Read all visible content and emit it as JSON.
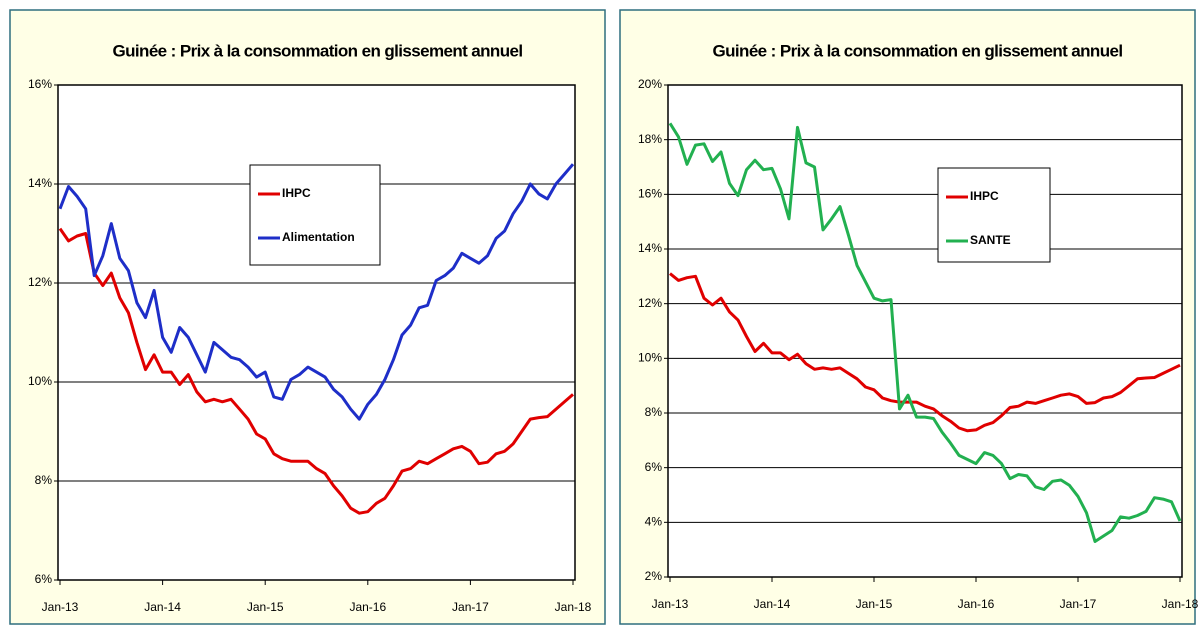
{
  "chart_data": [
    {
      "type": "line",
      "title": "Guinée : Prix à la consommation en glissement annuel",
      "categories": [
        "Jan-13",
        null,
        null,
        null,
        null,
        null,
        null,
        null,
        null,
        null,
        null,
        null,
        "Jan-14",
        null,
        null,
        null,
        null,
        null,
        null,
        null,
        null,
        null,
        null,
        null,
        "Jan-15",
        null,
        null,
        null,
        null,
        null,
        null,
        null,
        null,
        null,
        null,
        null,
        "Jan-16",
        null,
        null,
        null,
        null,
        null,
        null,
        null,
        null,
        null,
        null,
        null,
        "Jan-17",
        null,
        null,
        null,
        null,
        null,
        null,
        null,
        null,
        null,
        null,
        null,
        "Jan-18"
      ],
      "series": [
        {
          "name": "IHPC",
          "color": "#e00000",
          "values": [
            13.1,
            12.85,
            12.95,
            13.0,
            12.2,
            11.95,
            12.2,
            11.7,
            11.4,
            10.8,
            10.25,
            10.55,
            10.2,
            10.2,
            9.95,
            10.15,
            9.8,
            9.6,
            9.65,
            9.6,
            9.65,
            9.45,
            9.25,
            8.95,
            8.85,
            8.55,
            8.45,
            8.4,
            8.4,
            8.4,
            8.25,
            8.15,
            7.9,
            7.7,
            7.45,
            7.35,
            7.38,
            7.55,
            7.65,
            7.9,
            8.2,
            8.25,
            8.4,
            8.35,
            8.45,
            8.55,
            8.65,
            8.7,
            8.6,
            8.35,
            8.38,
            8.55,
            8.6,
            8.75,
            9.0,
            9.25,
            9.28,
            9.3,
            9.45,
            9.6,
            9.75
          ]
        },
        {
          "name": "Alimentation",
          "color": "#1e2ec8",
          "values": [
            13.5,
            13.95,
            13.75,
            13.5,
            12.15,
            12.55,
            13.2,
            12.5,
            12.25,
            11.6,
            11.3,
            11.85,
            10.9,
            10.6,
            11.1,
            10.9,
            10.55,
            10.2,
            10.8,
            10.65,
            10.5,
            10.45,
            10.3,
            10.1,
            10.2,
            9.7,
            9.65,
            10.05,
            10.15,
            10.3,
            10.2,
            10.1,
            9.85,
            9.7,
            9.45,
            9.25,
            9.55,
            9.75,
            10.05,
            10.45,
            10.95,
            11.15,
            11.5,
            11.55,
            12.05,
            12.15,
            12.3,
            12.6,
            12.5,
            12.4,
            12.55,
            12.9,
            13.05,
            13.4,
            13.65,
            14.0,
            13.8,
            13.7,
            14.0,
            14.2,
            14.4
          ]
        }
      ],
      "ylim": [
        6,
        16
      ],
      "yticks": [
        {
          "value": 6,
          "label": "6%"
        },
        {
          "value": 8,
          "label": "8%"
        },
        {
          "value": 10,
          "label": "10%"
        },
        {
          "value": 12,
          "label": "12%"
        },
        {
          "value": 14,
          "label": "14%"
        },
        {
          "value": 16,
          "label": "16%"
        }
      ],
      "grid": true
    },
    {
      "type": "line",
      "title": "Guinée : Prix à la consommation en glissement annuel",
      "categories": [
        "Jan-13",
        null,
        null,
        null,
        null,
        null,
        null,
        null,
        null,
        null,
        null,
        null,
        "Jan-14",
        null,
        null,
        null,
        null,
        null,
        null,
        null,
        null,
        null,
        null,
        null,
        "Jan-15",
        null,
        null,
        null,
        null,
        null,
        null,
        null,
        null,
        null,
        null,
        null,
        "Jan-16",
        null,
        null,
        null,
        null,
        null,
        null,
        null,
        null,
        null,
        null,
        null,
        "Jan-17",
        null,
        null,
        null,
        null,
        null,
        null,
        null,
        null,
        null,
        null,
        null,
        "Jan-18"
      ],
      "series": [
        {
          "name": "IHPC",
          "color": "#e00000",
          "values": [
            13.1,
            12.85,
            12.95,
            13.0,
            12.2,
            11.95,
            12.2,
            11.7,
            11.4,
            10.8,
            10.25,
            10.55,
            10.2,
            10.2,
            9.95,
            10.15,
            9.8,
            9.6,
            9.65,
            9.6,
            9.65,
            9.45,
            9.25,
            8.95,
            8.85,
            8.55,
            8.45,
            8.4,
            8.4,
            8.4,
            8.25,
            8.15,
            7.9,
            7.7,
            7.45,
            7.35,
            7.38,
            7.55,
            7.65,
            7.9,
            8.2,
            8.25,
            8.4,
            8.35,
            8.45,
            8.55,
            8.65,
            8.7,
            8.6,
            8.35,
            8.38,
            8.55,
            8.6,
            8.75,
            9.0,
            9.25,
            9.28,
            9.3,
            9.45,
            9.6,
            9.75
          ]
        },
        {
          "name": "SANTE",
          "color": "#22b050",
          "values": [
            18.6,
            18.1,
            17.1,
            17.8,
            17.85,
            17.2,
            17.55,
            16.4,
            15.95,
            16.9,
            17.25,
            16.9,
            16.95,
            16.2,
            15.1,
            18.45,
            17.15,
            17.0,
            14.7,
            15.1,
            15.55,
            14.5,
            13.4,
            12.8,
            12.2,
            12.1,
            12.15,
            8.15,
            8.65,
            7.85,
            7.85,
            7.8,
            7.3,
            6.9,
            6.45,
            6.3,
            6.15,
            6.55,
            6.45,
            6.15,
            5.6,
            5.75,
            5.7,
            5.3,
            5.2,
            5.5,
            5.55,
            5.35,
            4.95,
            4.35,
            3.3,
            3.5,
            3.7,
            4.2,
            4.15,
            4.25,
            4.4,
            4.9,
            4.85,
            4.75,
            4.05
          ]
        }
      ],
      "ylim": [
        2,
        20
      ],
      "yticks": [
        {
          "value": 2,
          "label": "2%"
        },
        {
          "value": 4,
          "label": "4%"
        },
        {
          "value": 6,
          "label": "6%"
        },
        {
          "value": 8,
          "label": "8%"
        },
        {
          "value": 10,
          "label": "10%"
        },
        {
          "value": 12,
          "label": "12%"
        },
        {
          "value": 14,
          "label": "14%"
        },
        {
          "value": 16,
          "label": "16%"
        },
        {
          "value": 18,
          "label": "18%"
        },
        {
          "value": 20,
          "label": "20%"
        }
      ],
      "grid": true
    }
  ]
}
